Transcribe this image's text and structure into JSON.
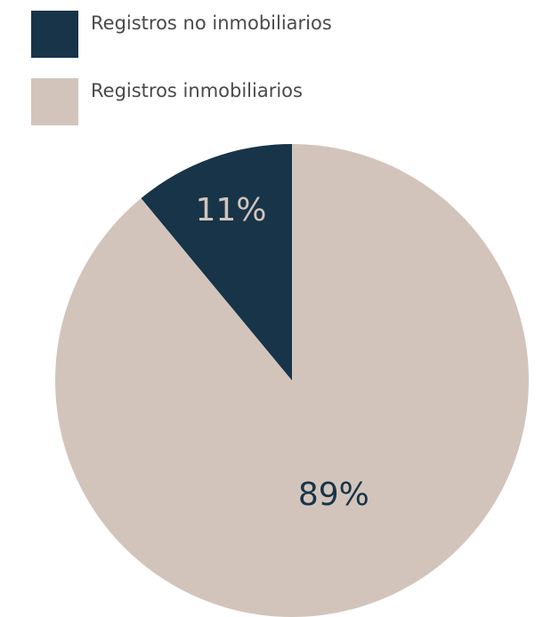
{
  "chart_data": {
    "type": "pie",
    "series": [
      {
        "name": "Registros no inmobiliarios",
        "color": "#173449",
        "values": [
          11
        ],
        "value_labels": [
          "11%"
        ]
      },
      {
        "name": "Registros inmobiliarios",
        "color": "#d3c4bb",
        "values": [
          89
        ],
        "value_labels": [
          "89%"
        ]
      }
    ]
  }
}
